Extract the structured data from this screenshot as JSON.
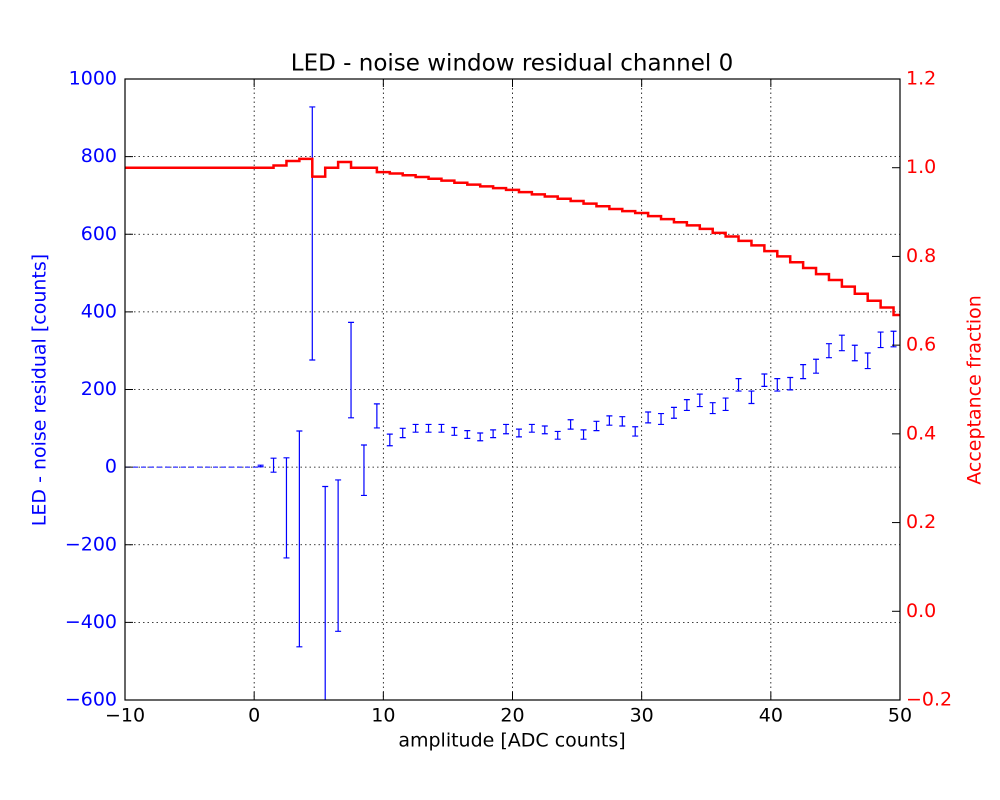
{
  "chart_data": {
    "type": "errorbar",
    "title": "LED - noise window residual channel 0",
    "xlabel": "amplitude [ADC counts]",
    "ylabel": "LED - noise residual [counts]",
    "y2label": "Acceptance fraction",
    "xlim": [
      -10,
      50
    ],
    "xticks": [
      {
        "value": -10,
        "label": "−10"
      },
      0,
      10,
      20,
      30,
      40,
      50
    ],
    "ylim": [
      -600,
      1000
    ],
    "yticks": [
      {
        "value": -600,
        "label": "−600"
      },
      {
        "value": -400,
        "label": "−400"
      },
      {
        "value": -200,
        "label": "−200"
      },
      0,
      200,
      400,
      600,
      800,
      1000
    ],
    "y2lim": [
      -0.2,
      1.2
    ],
    "y2ticks": [
      {
        "value": -0.2,
        "label": "−0.2"
      },
      {
        "value": 0,
        "label": "0.0"
      },
      0.2,
      0.4,
      0.6,
      0.8,
      {
        "value": 1,
        "label": "1.0"
      },
      1.2
    ],
    "grid": true,
    "ycolor": "#0000ff",
    "y2color": "#ff0000",
    "series": [
      {
        "type": "line",
        "style": "dashed",
        "color": "#0000ff",
        "x": [
          -10,
          0.5
        ],
        "values": [
          0,
          0
        ]
      },
      {
        "type": "errorbar",
        "color": "#0000ff",
        "x": [
          0.5,
          1.5,
          2.5,
          3.5,
          4.5,
          5.5,
          6.5,
          7.5,
          8.5,
          9.5,
          10.5,
          11.5,
          12.5,
          13.5,
          14.5,
          15.5,
          16.5,
          17.5,
          18.5,
          19.5,
          20.5,
          21.5,
          22.5,
          23.5,
          24.5,
          25.5,
          26.5,
          27.5,
          28.5,
          29.5,
          30.5,
          31.5,
          32.5,
          33.5,
          34.5,
          35.5,
          36.5,
          37.5,
          38.5,
          39.5,
          40.5,
          41.5,
          42.5,
          43.5,
          44.5,
          45.5,
          46.5,
          47.5,
          48.5,
          49.5
        ],
        "values": [
          3,
          5,
          -105,
          -185,
          602,
          -380,
          -228,
          250,
          -8,
          132,
          70,
          88,
          100,
          100,
          100,
          92,
          84,
          78,
          86,
          98,
          88,
          100,
          96,
          82,
          110,
          84,
          106,
          120,
          118,
          92,
          128,
          124,
          140,
          160,
          172,
          152,
          162,
          212,
          180,
          224,
          212,
          215,
          246,
          260,
          300,
          320,
          294,
          274,
          328,
          330
        ],
        "errors": [
          2,
          18,
          129,
          278,
          326,
          330,
          195,
          123,
          65,
          31,
          15,
          12,
          10,
          10,
          10,
          10,
          10,
          10,
          10,
          12,
          10,
          10,
          10,
          10,
          12,
          12,
          12,
          12,
          12,
          12,
          14,
          14,
          14,
          14,
          16,
          14,
          16,
          16,
          16,
          16,
          16,
          16,
          18,
          18,
          18,
          20,
          20,
          20,
          20,
          20
        ]
      },
      {
        "type": "step",
        "axis": "y2",
        "color": "#ff0000",
        "x": [
          -10,
          -9,
          -8,
          -7,
          -6,
          -5,
          -4,
          -3,
          -2,
          -1,
          0,
          1,
          2,
          3,
          4,
          5,
          6,
          7,
          8,
          9,
          10,
          11,
          12,
          13,
          14,
          15,
          16,
          17,
          18,
          19,
          20,
          21,
          22,
          23,
          24,
          25,
          26,
          27,
          28,
          29,
          30,
          31,
          32,
          33,
          34,
          35,
          36,
          37,
          38,
          39,
          40,
          41,
          42,
          43,
          44,
          45,
          46,
          47,
          48,
          49,
          50
        ],
        "values": [
          1,
          1,
          1,
          1,
          1,
          1,
          1,
          1,
          1,
          1,
          1,
          1,
          1.005,
          1.015,
          1.02,
          0.98,
          1,
          1.013,
          1,
          1,
          0.99,
          0.987,
          0.983,
          0.979,
          0.975,
          0.971,
          0.966,
          0.962,
          0.958,
          0.954,
          0.95,
          0.945,
          0.94,
          0.935,
          0.93,
          0.925,
          0.919,
          0.913,
          0.907,
          0.902,
          0.898,
          0.891,
          0.884,
          0.877,
          0.87,
          0.862,
          0.853,
          0.845,
          0.835,
          0.825,
          0.812,
          0.8,
          0.787,
          0.774,
          0.76,
          0.747,
          0.732,
          0.716,
          0.7,
          0.685,
          0.668
        ]
      }
    ]
  }
}
